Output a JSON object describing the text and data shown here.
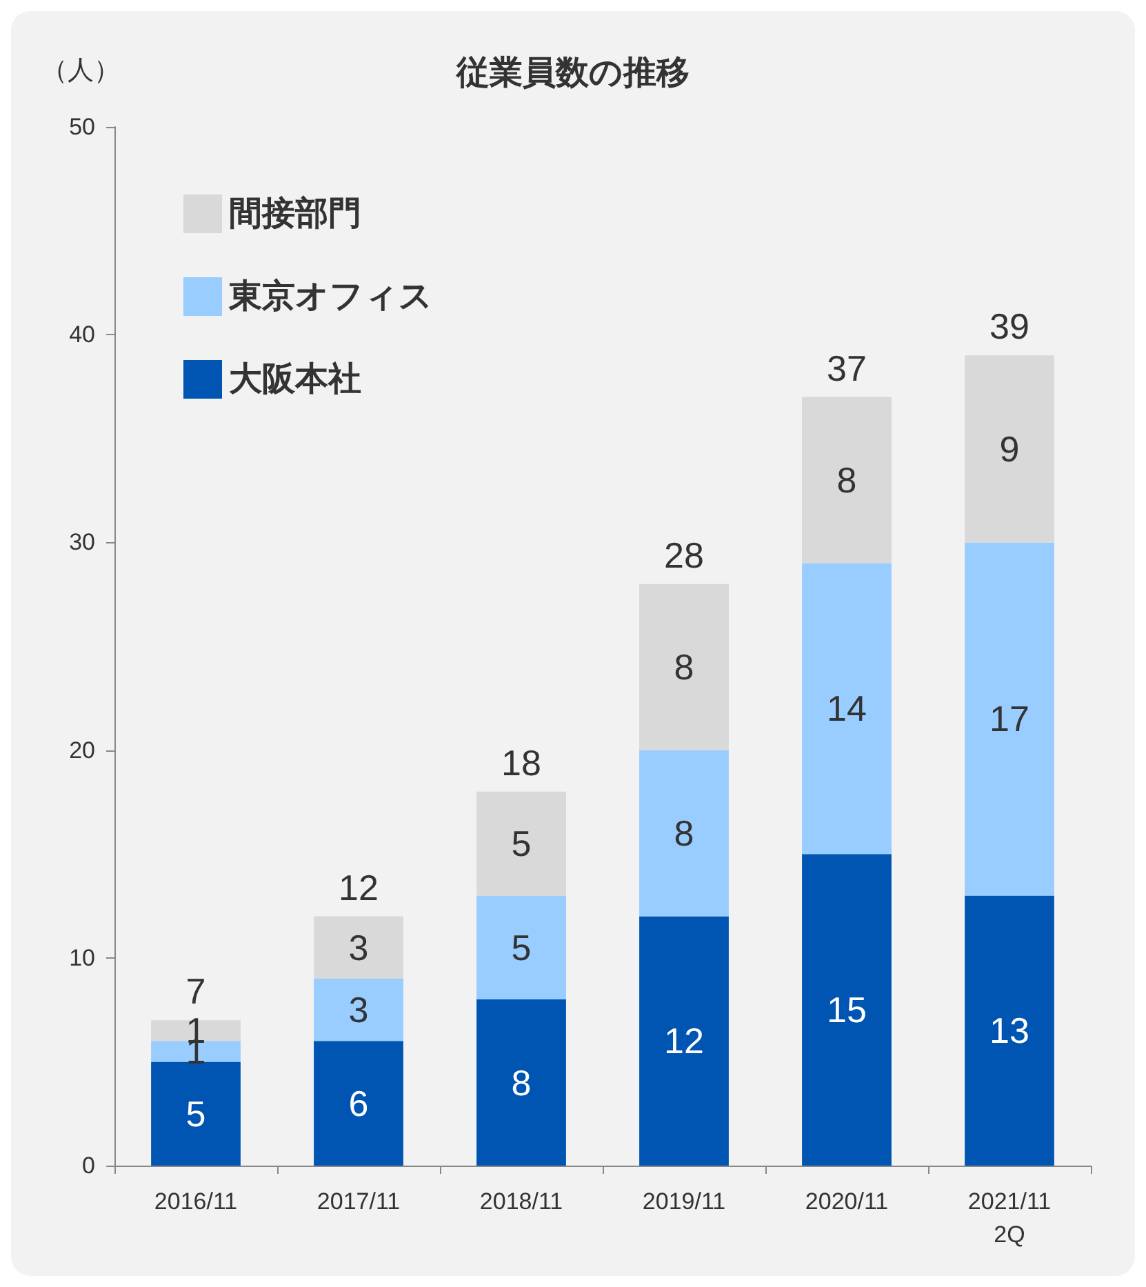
{
  "chart_data": {
    "type": "bar",
    "title": "従業員数の推移",
    "ylabel": "（人）",
    "categories": [
      "2016/11",
      "2017/11",
      "2018/11",
      "2019/11",
      "2020/11",
      "2021/11\n2Q"
    ],
    "stacked": true,
    "data_labels": true,
    "legend": "top left",
    "grid": false,
    "ylim": [
      0,
      50
    ],
    "yticks": [
      0,
      10,
      20,
      30,
      40,
      50
    ],
    "series": [
      {
        "name": "大阪本社",
        "color": "#0055b3",
        "values": [
          5,
          6,
          8,
          12,
          15,
          13
        ]
      },
      {
        "name": "東京オフィス",
        "color": "#99ccff",
        "values": [
          1,
          3,
          5,
          8,
          14,
          17
        ]
      },
      {
        "name": "間接部門",
        "color": "#d9d9d9",
        "values": [
          1,
          3,
          5,
          8,
          8,
          9
        ]
      }
    ],
    "totals": [
      "7",
      "12",
      "18",
      "28",
      "37",
      "39"
    ]
  }
}
